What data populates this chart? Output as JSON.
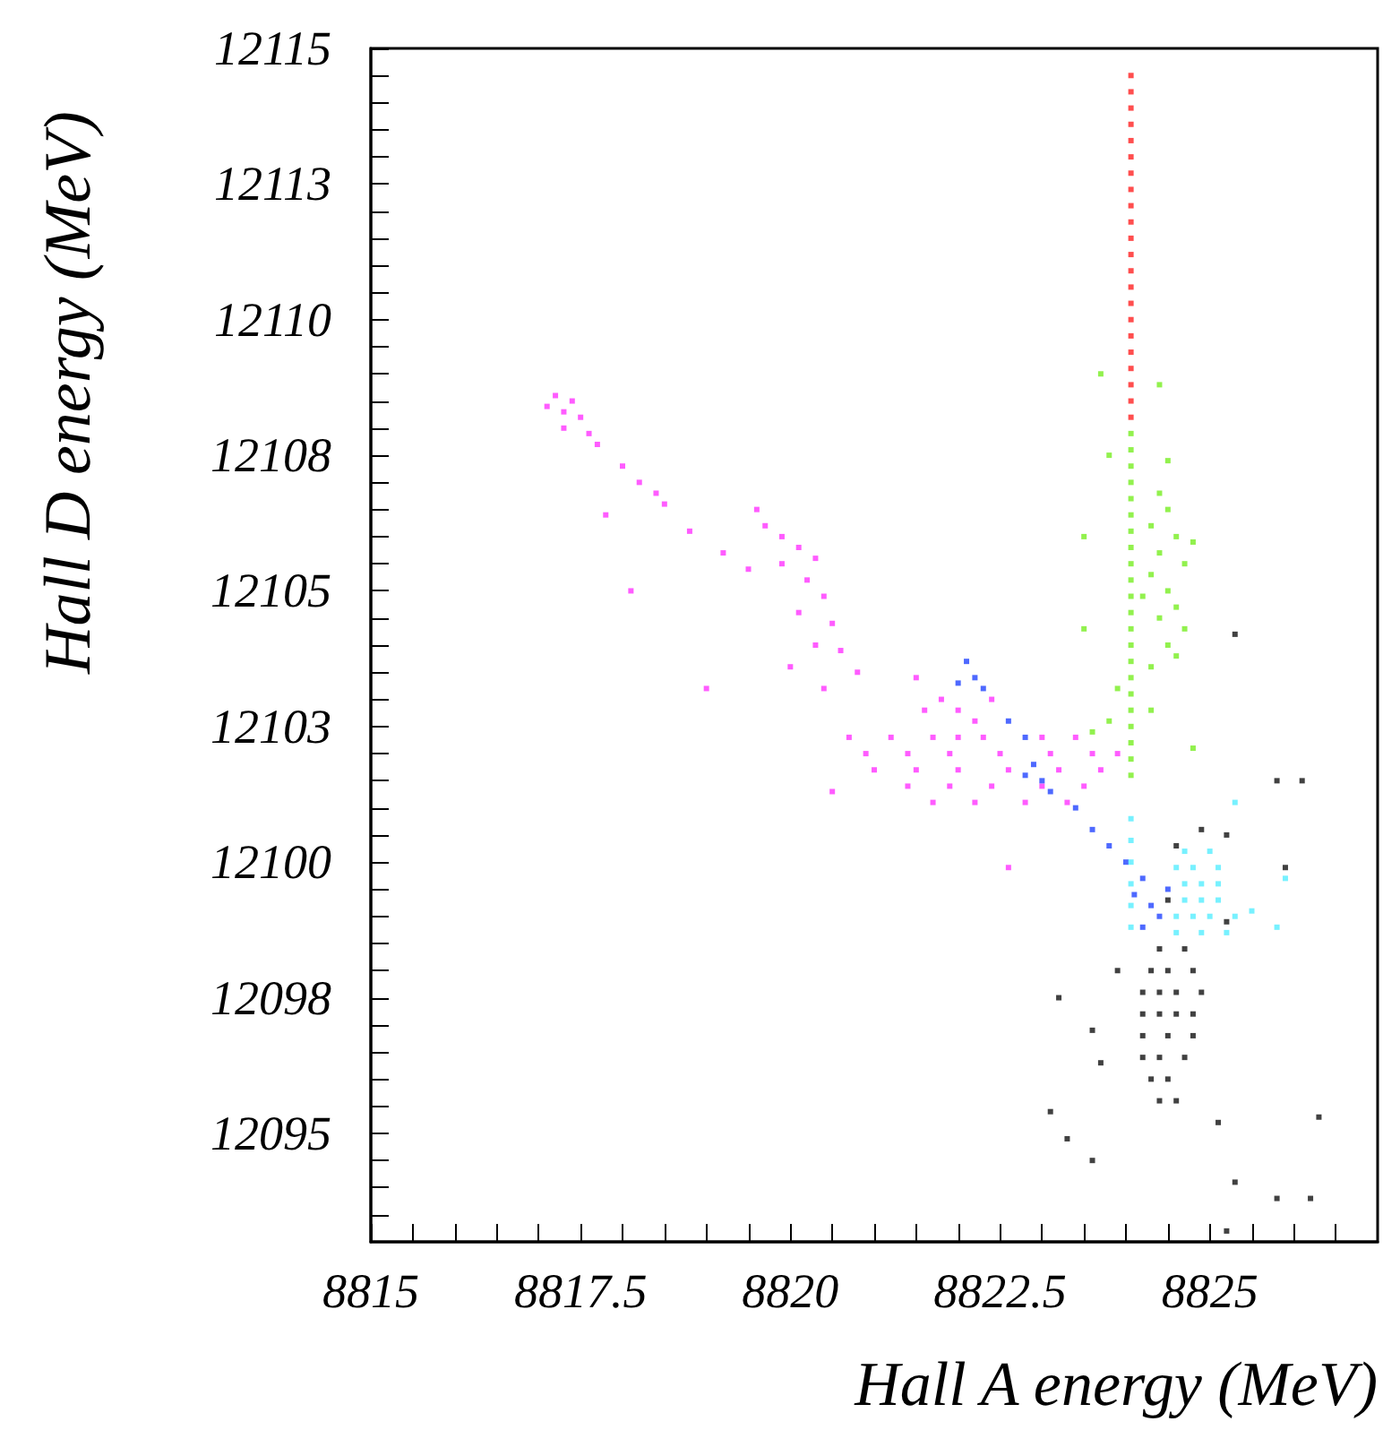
{
  "chart_data": {
    "type": "scatter",
    "xlabel": "Hall A energy (MeV)",
    "ylabel": "Hall D energy (MeV)",
    "xlim": [
      8815,
      8827
    ],
    "ylim": [
      12093,
      12115
    ],
    "xticks": [
      8815,
      {
        "value": 8815.5,
        "label": null
      },
      {
        "value": 8816,
        "label": null
      },
      {
        "value": 8816.5,
        "label": null
      },
      {
        "value": 8817,
        "label": null
      },
      8817.5,
      {
        "value": 8818,
        "label": null
      },
      {
        "value": 8818.5,
        "label": null
      },
      {
        "value": 8819,
        "label": null
      },
      {
        "value": 8819.5,
        "label": null
      },
      8820,
      {
        "value": 8820.5,
        "label": null
      },
      {
        "value": 8821,
        "label": null
      },
      {
        "value": 8821.5,
        "label": null
      },
      {
        "value": 8822,
        "label": null
      },
      8822.5,
      {
        "value": 8823,
        "label": null
      },
      {
        "value": 8823.5,
        "label": null
      },
      {
        "value": 8824,
        "label": null
      },
      {
        "value": 8824.5,
        "label": null
      },
      8825,
      {
        "value": 8825.5,
        "label": null
      },
      {
        "value": 8826,
        "label": null
      },
      {
        "value": 8826.5,
        "label": null
      }
    ],
    "yticks": [
      {
        "value": 12093.5,
        "label": null
      },
      {
        "value": 12094,
        "label": null
      },
      {
        "value": 12094.5,
        "label": null
      },
      12095,
      {
        "value": 12095.5,
        "label": null
      },
      {
        "value": 12096,
        "label": null
      },
      {
        "value": 12096.5,
        "label": null
      },
      {
        "value": 12097,
        "label": null
      },
      {
        "value": 12097.5,
        "label": "12098"
      },
      {
        "value": 12098,
        "label": null
      },
      {
        "value": 12098.5,
        "label": null
      },
      {
        "value": 12099,
        "label": null
      },
      {
        "value": 12099.5,
        "label": null
      },
      12100,
      {
        "value": 12100.5,
        "label": null
      },
      {
        "value": 12101,
        "label": null
      },
      {
        "value": 12101.5,
        "label": null
      },
      {
        "value": 12102,
        "label": null
      },
      {
        "value": 12102.5,
        "label": "12103"
      },
      {
        "value": 12103,
        "label": null
      },
      {
        "value": 12103.5,
        "label": null
      },
      {
        "value": 12104,
        "label": null
      },
      {
        "value": 12104.5,
        "label": null
      },
      12105,
      {
        "value": 12105.5,
        "label": null
      },
      {
        "value": 12106,
        "label": null
      },
      {
        "value": 12106.5,
        "label": null
      },
      {
        "value": 12107,
        "label": null
      },
      {
        "value": 12107.5,
        "label": "12108"
      },
      {
        "value": 12108,
        "label": null
      },
      {
        "value": 12108.5,
        "label": null
      },
      {
        "value": 12109,
        "label": null
      },
      {
        "value": 12109.5,
        "label": null
      },
      12110,
      {
        "value": 12110.5,
        "label": null
      },
      {
        "value": 12111,
        "label": null
      },
      {
        "value": 12111.5,
        "label": null
      },
      {
        "value": 12112,
        "label": null
      },
      {
        "value": 12112.5,
        "label": "12113"
      },
      {
        "value": 12113,
        "label": null
      },
      {
        "value": 12113.5,
        "label": null
      },
      {
        "value": 12114,
        "label": null
      },
      {
        "value": 12114.5,
        "label": null
      },
      12115
    ],
    "grid": false,
    "marker": "square",
    "series": [
      {
        "color": "#ff33ff",
        "x": [
          8817.2,
          8817.3,
          8817.4,
          8817.5,
          8817.3,
          8817.6,
          8817.1,
          8817.7,
          8818.0,
          8818.2,
          8818.4,
          8818.5,
          8818.8,
          8817.8,
          8819.6,
          8819.7,
          8819.9,
          8819.2,
          8819.5,
          8819.9,
          8820.1,
          8820.3,
          8820.2,
          8820.4,
          8820.1,
          8820.5,
          8820.3,
          8820.6,
          8820.0,
          8820.8,
          8820.4,
          8821.5,
          8821.8,
          8822.0,
          8822.2,
          8822.0,
          8821.6,
          8822.4,
          8820.7,
          8821.2,
          8821.7,
          8822.3,
          8823.0,
          8823.4,
          8820.9,
          8821.4,
          8821.9,
          8822.5,
          8823.1,
          8823.6,
          8823.9,
          8821.0,
          8821.5,
          8822.0,
          8822.6,
          8823.2,
          8823.7,
          8821.4,
          8821.9,
          8822.4,
          8823.0,
          8823.5,
          8821.7,
          8822.2,
          8822.8,
          8823.3,
          8818.1,
          8819.0,
          8822.6,
          8820.5
        ],
        "values": [
          12108.6,
          12108.3,
          12108.5,
          12108.2,
          12108.0,
          12107.9,
          12108.4,
          12107.7,
          12107.3,
          12107.0,
          12106.8,
          12106.6,
          12106.1,
          12106.4,
          12106.5,
          12106.2,
          12106.0,
          12105.7,
          12105.4,
          12105.5,
          12105.8,
          12105.6,
          12105.2,
          12104.9,
          12104.6,
          12104.4,
          12104.0,
          12103.9,
          12103.6,
          12103.5,
          12103.2,
          12103.4,
          12103.0,
          12102.8,
          12102.6,
          12102.3,
          12102.8,
          12103.0,
          12102.3,
          12102.3,
          12102.3,
          12102.3,
          12102.3,
          12102.3,
          12102.0,
          12102.0,
          12102.0,
          12102.0,
          12102.0,
          12102.0,
          12102.0,
          12101.7,
          12101.7,
          12101.7,
          12101.7,
          12101.7,
          12101.7,
          12101.4,
          12101.4,
          12101.4,
          12101.4,
          12101.4,
          12101.1,
          12101.1,
          12101.1,
          12101.1,
          12105.0,
          12103.2,
          12099.9,
          12101.3
        ]
      },
      {
        "color": "#2244ff",
        "x": [
          8822.1,
          8822.2,
          8822.3,
          8822.0,
          8822.6,
          8822.8,
          8822.9,
          8823.0,
          8823.1,
          8822.8,
          8823.4,
          8823.8,
          8824.0,
          8824.2,
          8824.1,
          8824.3,
          8824.4,
          8824.2,
          8823.6,
          8824.5
        ],
        "values": [
          12103.7,
          12103.4,
          12103.2,
          12103.3,
          12102.6,
          12102.3,
          12101.8,
          12101.5,
          12101.3,
          12101.6,
          12101.0,
          12100.3,
          12100.0,
          12099.7,
          12099.4,
          12099.2,
          12099.0,
          12098.8,
          12100.6,
          12099.5
        ]
      },
      {
        "color": "#77ee22",
        "x": [
          8824.06,
          8824.06,
          8824.06,
          8824.06,
          8824.06,
          8824.06,
          8824.06,
          8824.06,
          8824.06,
          8824.06,
          8824.06,
          8824.06,
          8824.06,
          8824.06,
          8824.06,
          8824.06,
          8824.06,
          8824.06,
          8824.06,
          8824.06,
          8824.06,
          8824.06,
          8824.4,
          8824.5,
          8824.3,
          8824.6,
          8824.4,
          8824.7,
          8824.3,
          8824.5,
          8824.6,
          8824.4,
          8824.7,
          8824.5,
          8824.6,
          8824.3,
          8824.8,
          8824.2,
          8823.7,
          8824.4,
          8823.8,
          8824.5,
          8823.5,
          8823.5,
          8823.9,
          8823.8,
          8824.8,
          8824.3,
          8823.6
        ],
        "values": [
          12101.6,
          12101.9,
          12102.2,
          12102.5,
          12102.8,
          12103.1,
          12103.4,
          12103.7,
          12104.0,
          12104.3,
          12104.6,
          12104.9,
          12105.2,
          12105.5,
          12105.8,
          12106.1,
          12106.4,
          12106.7,
          12107.0,
          12107.3,
          12107.6,
          12107.9,
          12106.8,
          12106.5,
          12106.2,
          12106.0,
          12105.7,
          12105.5,
          12105.3,
          12105.0,
          12104.7,
          12104.5,
          12104.3,
          12104.0,
          12103.8,
          12103.6,
          12105.9,
          12104.9,
          12109.0,
          12108.8,
          12107.5,
          12107.4,
          12106.0,
          12104.3,
          12103.2,
          12102.6,
          12102.1,
          12102.8,
          12102.4
        ]
      },
      {
        "color": "#ff2222",
        "x": [
          8824.06,
          8824.06,
          8824.06,
          8824.06,
          8824.06,
          8824.06,
          8824.06,
          8824.06,
          8824.06,
          8824.06,
          8824.06,
          8824.06,
          8824.06,
          8824.06,
          8824.06,
          8824.06,
          8824.06,
          8824.06,
          8824.06,
          8824.06,
          8824.06,
          8824.06
        ],
        "values": [
          12108.2,
          12108.5,
          12108.8,
          12109.1,
          12109.4,
          12109.7,
          12110.0,
          12110.3,
          12110.6,
          12110.9,
          12111.2,
          12111.5,
          12111.8,
          12112.1,
          12112.4,
          12112.7,
          12113.0,
          12113.3,
          12113.6,
          12113.9,
          12114.2,
          12114.5
        ]
      },
      {
        "color": "#55eeff",
        "x": [
          8824.06,
          8824.06,
          8824.06,
          8824.06,
          8824.06,
          8824.06,
          8824.7,
          8825.0,
          8824.6,
          8824.8,
          8825.1,
          8824.7,
          8824.9,
          8825.1,
          8824.7,
          8824.9,
          8825.1,
          8824.6,
          8824.8,
          8825.0,
          8825.3,
          8824.6,
          8824.9,
          8825.2,
          8825.5,
          8825.8,
          8825.9,
          8825.3
        ],
        "values": [
          12100.8,
          12100.4,
          12100.0,
          12099.6,
          12099.2,
          12098.8,
          12100.2,
          12100.2,
          12099.9,
          12099.9,
          12099.9,
          12099.6,
          12099.6,
          12099.6,
          12099.3,
          12099.3,
          12099.3,
          12099.0,
          12099.0,
          12099.0,
          12099.0,
          12098.7,
          12098.7,
          12098.7,
          12099.1,
          12098.8,
          12099.7,
          12101.1
        ]
      },
      {
        "color": "#111111",
        "x": [
          8824.4,
          8824.7,
          8824.3,
          8824.5,
          8824.8,
          8824.2,
          8824.4,
          8824.6,
          8824.9,
          8824.2,
          8824.4,
          8824.6,
          8824.8,
          8824.2,
          8824.5,
          8824.8,
          8824.2,
          8824.4,
          8824.7,
          8824.3,
          8824.5,
          8824.4,
          8824.6,
          8824.6,
          8824.9,
          8825.2,
          8825.2,
          8824.5,
          8825.3,
          8825.8,
          8826.1,
          8825.9,
          8826.3,
          8823.1,
          8823.3,
          8823.6,
          8825.3,
          8825.8,
          8826.2,
          8825.2,
          8823.2,
          8823.6,
          8823.7,
          8823.9,
          8825.1
        ],
        "values": [
          12098.4,
          12098.4,
          12098.0,
          12098.0,
          12098.0,
          12097.6,
          12097.6,
          12097.6,
          12097.6,
          12097.2,
          12097.2,
          12097.2,
          12097.2,
          12096.8,
          12096.8,
          12096.8,
          12096.4,
          12096.4,
          12096.4,
          12096.0,
          12096.0,
          12095.6,
          12095.6,
          12100.3,
          12100.6,
          12100.5,
          12098.9,
          12099.3,
          12104.2,
          12101.5,
          12101.5,
          12099.9,
          12095.3,
          12095.4,
          12094.9,
          12094.5,
          12094.1,
          12093.8,
          12093.8,
          12093.2,
          12097.5,
          12096.9,
          12096.3,
          12098.0,
          12095.2
        ]
      }
    ]
  }
}
